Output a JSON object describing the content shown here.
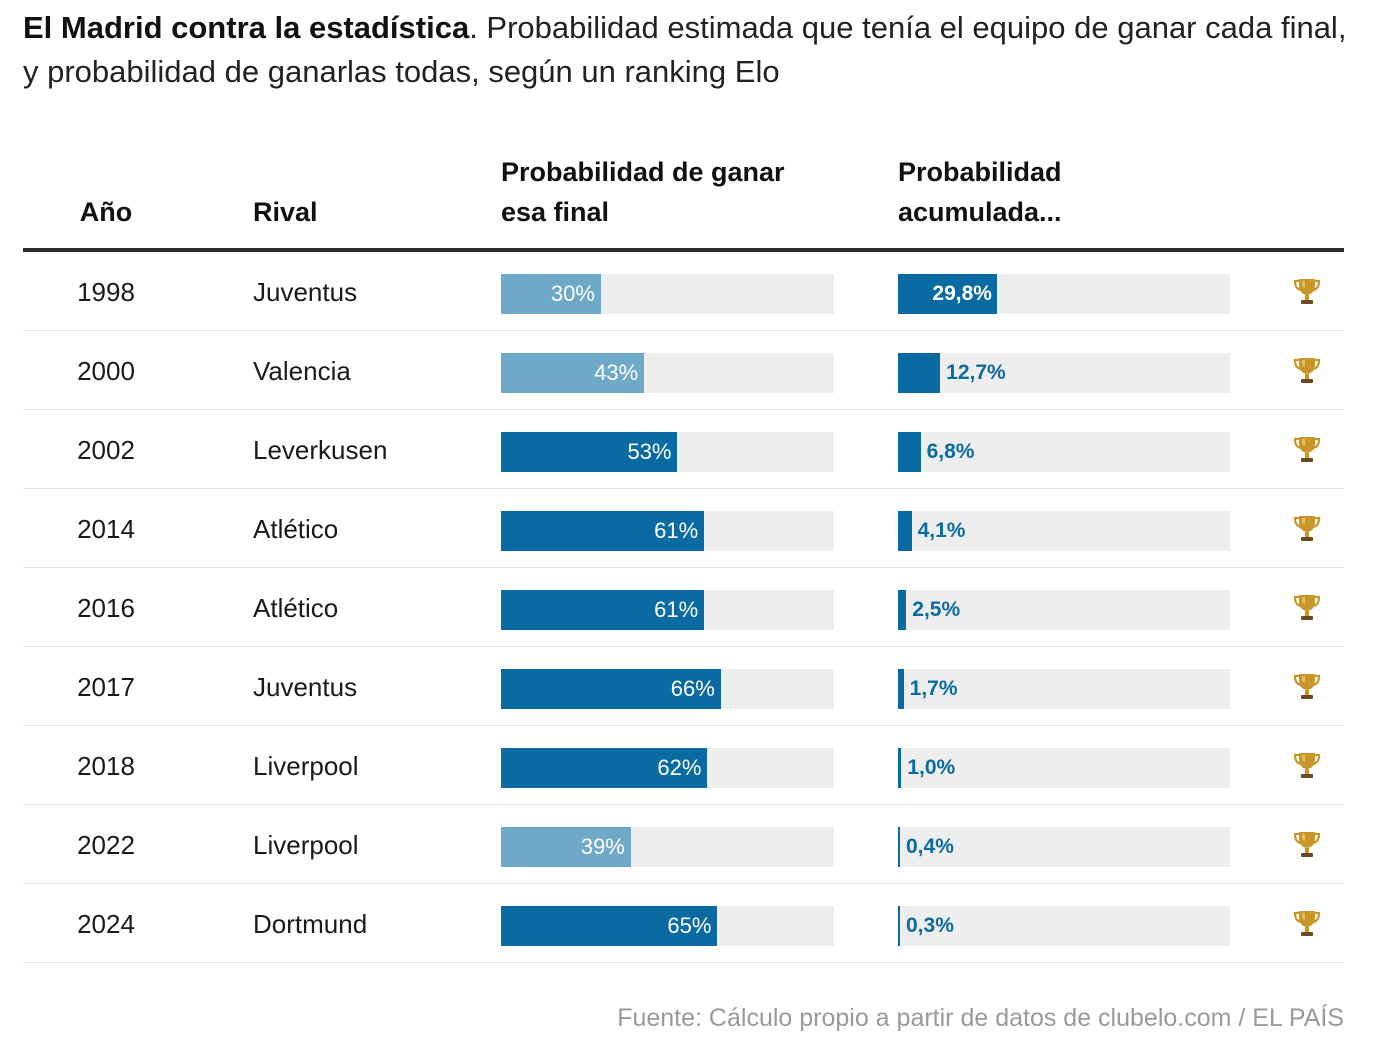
{
  "title": {
    "bold": "El Madrid contra la estadística",
    "rest": ". Probabilidad estimada que tenía el equipo de ganar cada final, y probabilidad de ganarlas todas, según un ranking Elo"
  },
  "headers": {
    "year": "Año",
    "rival": "Rival",
    "prob_line1": "Probabilidad de ganar",
    "prob_line2": "esa final",
    "cum_line1": "Probabilidad",
    "cum_line2": "acumulada..."
  },
  "source": "Fuente: Cálculo propio a partir de datos de clubelo.com / EL PAÍS",
  "colors": {
    "dark_blue": "#0a6ba3",
    "light_blue": "#6fa9c9",
    "track": "#eeeeee",
    "trophy": "#c8962a"
  },
  "icons": {
    "trophy": "trophy-icon"
  },
  "chart_data": {
    "type": "table",
    "columns": [
      "Año",
      "Rival",
      "Probabilidad de ganar esa final",
      "Probabilidad acumulada..."
    ],
    "rows": [
      {
        "year": "1998",
        "rival": "Juventus",
        "prob": 30,
        "prob_label": "30%",
        "cum": 29.8,
        "cum_label": "29,8%",
        "favored": false
      },
      {
        "year": "2000",
        "rival": "Valencia",
        "prob": 43,
        "prob_label": "43%",
        "cum": 12.7,
        "cum_label": "12,7%",
        "favored": false
      },
      {
        "year": "2002",
        "rival": "Leverkusen",
        "prob": 53,
        "prob_label": "53%",
        "cum": 6.8,
        "cum_label": "6,8%",
        "favored": true
      },
      {
        "year": "2014",
        "rival": "Atlético",
        "prob": 61,
        "prob_label": "61%",
        "cum": 4.1,
        "cum_label": "4,1%",
        "favored": true
      },
      {
        "year": "2016",
        "rival": "Atlético",
        "prob": 61,
        "prob_label": "61%",
        "cum": 2.5,
        "cum_label": "2,5%",
        "favored": true
      },
      {
        "year": "2017",
        "rival": "Juventus",
        "prob": 66,
        "prob_label": "66%",
        "cum": 1.7,
        "cum_label": "1,7%",
        "favored": true
      },
      {
        "year": "2018",
        "rival": "Liverpool",
        "prob": 62,
        "prob_label": "62%",
        "cum": 1.0,
        "cum_label": "1,0%",
        "favored": true
      },
      {
        "year": "2022",
        "rival": "Liverpool",
        "prob": 39,
        "prob_label": "39%",
        "cum": 0.4,
        "cum_label": "0,4%",
        "favored": false
      },
      {
        "year": "2024",
        "rival": "Dortmund",
        "prob": 65,
        "prob_label": "65%",
        "cum": 0.3,
        "cum_label": "0,3%",
        "favored": true
      }
    ],
    "prob_range": [
      0,
      100
    ],
    "cum_range": [
      0,
      100
    ]
  }
}
